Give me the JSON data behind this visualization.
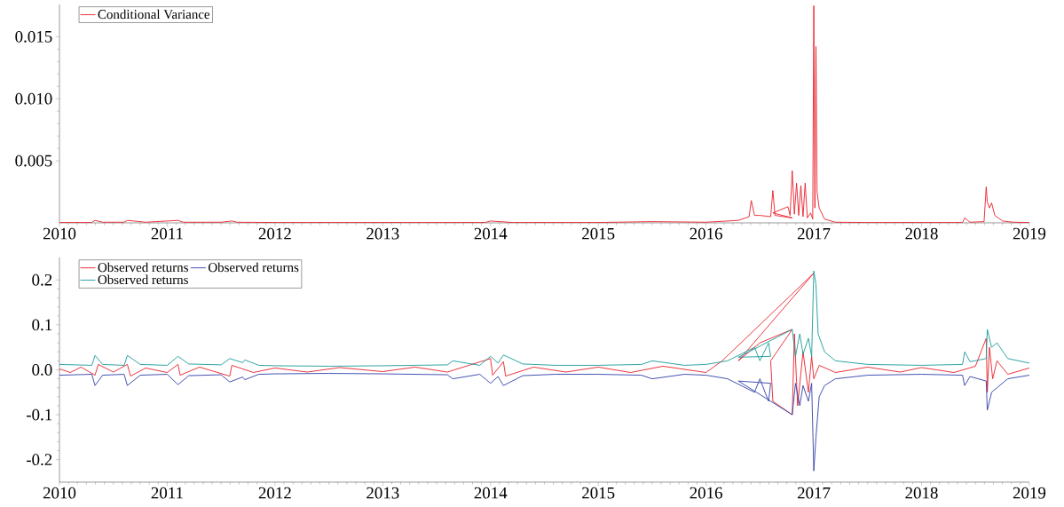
{
  "chart_data": [
    {
      "type": "line",
      "xlim": [
        2010,
        2019
      ],
      "ylim": [
        0,
        0.0176
      ],
      "xticks": [
        2010,
        2011,
        2012,
        2013,
        2014,
        2015,
        2016,
        2017,
        2018,
        2019
      ],
      "yticks": [
        {
          "value": 0.005,
          "label": "0.005"
        },
        {
          "value": 0.01,
          "label": "0.010"
        },
        {
          "value": 0.015,
          "label": "0.015"
        }
      ],
      "legend": "top left",
      "line_style": "solid",
      "marker": "none",
      "series": [
        {
          "name": "Conditional Variance",
          "color": "#e8202a",
          "x": [
            2010,
            2010.3,
            2010.33,
            2010.4,
            2010.6,
            2010.63,
            2010.8,
            2011.1,
            2011.15,
            2011.5,
            2011.6,
            2011.65,
            2012,
            2013,
            2013.95,
            2014.0,
            2014.2,
            2015,
            2015.5,
            2016,
            2016.3,
            2016.4,
            2016.42,
            2016.45,
            2016.5,
            2016.6,
            2016.62,
            2016.64,
            2016.8,
            2016.62,
            2016.76,
            2016.78,
            2016.8,
            2016.82,
            2016.84,
            2016.86,
            2016.88,
            2016.9,
            2016.92,
            2016.94,
            2016.97,
            2016.99,
            2017.0,
            2017.01,
            2017.02,
            2017.03,
            2017.05,
            2017.1,
            2017.2,
            2017.5,
            2018,
            2018.38,
            2018.4,
            2018.45,
            2018.58,
            2018.6,
            2018.61,
            2018.63,
            2018.65,
            2018.68,
            2018.75,
            2018.85,
            2019
          ],
          "values": [
            3e-05,
            3e-05,
            0.0002,
            5e-05,
            5e-05,
            0.0002,
            5e-05,
            0.0002,
            5e-05,
            5e-05,
            0.00015,
            5e-05,
            3e-05,
            3e-05,
            3e-05,
            0.00015,
            3e-05,
            3e-05,
            0.0001,
            5e-05,
            0.0002,
            0.0005,
            0.0018,
            0.0006,
            0.0006,
            0.0005,
            0.0026,
            0.0006,
            0.0004,
            0.0008,
            0.0013,
            0.0006,
            0.0042,
            0.0007,
            0.0032,
            0.0006,
            0.003,
            0.0005,
            0.0032,
            0.0004,
            0.0008,
            0.0003,
            0.0175,
            0.0012,
            0.0142,
            0.0025,
            0.0012,
            0.0003,
            5e-05,
            3e-05,
            3e-05,
            3e-05,
            0.0004,
            5e-05,
            0.0001,
            0.0029,
            0.0017,
            0.0012,
            0.0016,
            0.0006,
            0.00015,
            5e-05,
            3e-05
          ]
        }
      ]
    },
    {
      "type": "line",
      "xlim": [
        2010,
        2019
      ],
      "ylim": [
        -0.25,
        0.25
      ],
      "xticks": [
        2010,
        2011,
        2012,
        2013,
        2014,
        2015,
        2016,
        2017,
        2018,
        2019
      ],
      "yticks": [
        {
          "value": -0.2,
          "label": "-0.2"
        },
        {
          "value": -0.1,
          "label": "-0.1"
        },
        {
          "value": 0,
          "label": "0.0"
        },
        {
          "value": 0.1,
          "label": "0.1"
        },
        {
          "value": 0.2,
          "label": "0.2"
        }
      ],
      "legend": "top left",
      "line_style": "solid",
      "marker": "none",
      "series": [
        {
          "name": "Observed returns",
          "color": "#e8202a",
          "x": [
            2010,
            2010.1,
            2010.2,
            2010.33,
            2010.36,
            2010.5,
            2010.63,
            2010.66,
            2010.8,
            2011.0,
            2011.1,
            2011.12,
            2011.3,
            2011.58,
            2011.6,
            2011.8,
            2012.0,
            2012.3,
            2012.6,
            2013.0,
            2013.3,
            2013.6,
            2014.0,
            2014.02,
            2014.12,
            2014.14,
            2014.4,
            2014.7,
            2015.0,
            2015.3,
            2015.6,
            2016.0,
            2016.15,
            2017.0,
            2016.3,
            2016.5,
            2016.8,
            2016.6,
            2016.62,
            2016.8,
            2016.82,
            2016.85,
            2016.9,
            2016.95,
            2016.98,
            2017.0,
            2017.05,
            2017.2,
            2017.5,
            2017.8,
            2018.0,
            2018.3,
            2018.5,
            2018.6,
            2018.61,
            2018.63,
            2018.66,
            2018.7,
            2018.8,
            2019.0
          ],
          "values": [
            0.002,
            -0.006,
            0.006,
            -0.012,
            0.012,
            -0.005,
            0.012,
            -0.014,
            0.004,
            -0.006,
            0.012,
            -0.012,
            0.006,
            -0.014,
            0.01,
            -0.006,
            0.004,
            -0.005,
            0.005,
            -0.004,
            0.006,
            -0.005,
            0.025,
            -0.012,
            0.018,
            -0.014,
            0.006,
            -0.005,
            0.006,
            -0.006,
            0.008,
            -0.006,
            0.02,
            0.215,
            0.02,
            0.06,
            0.09,
            0.02,
            -0.07,
            -0.1,
            0.08,
            -0.08,
            0.04,
            -0.05,
            0.03,
            -0.02,
            0.01,
            -0.006,
            0.006,
            -0.005,
            0.005,
            -0.006,
            0.008,
            0.07,
            -0.05,
            0.05,
            -0.02,
            0.02,
            -0.01,
            0.004
          ]
        },
        {
          "name": "Observed returns",
          "color": "#3040a8",
          "x": [
            2010,
            2010.3,
            2010.33,
            2010.4,
            2010.6,
            2010.63,
            2010.75,
            2011.0,
            2011.1,
            2011.2,
            2011.5,
            2011.58,
            2011.7,
            2011.72,
            2011.85,
            2012.0,
            2012.5,
            2013.0,
            2013.6,
            2013.65,
            2013.9,
            2014.0,
            2014.07,
            2014.12,
            2014.3,
            2014.6,
            2015.0,
            2015.4,
            2015.5,
            2015.8,
            2016.0,
            2016.2,
            2016.45,
            2016.5,
            2016.58,
            2016.6,
            2016.3,
            2016.8,
            2016.83,
            2016.87,
            2016.9,
            2016.95,
            2016.98,
            2017.0,
            2017.02,
            2017.05,
            2017.1,
            2017.2,
            2017.5,
            2018.0,
            2018.38,
            2018.4,
            2018.45,
            2018.6,
            2018.61,
            2018.65,
            2018.7,
            2018.8,
            2019.0
          ],
          "values": [
            -0.012,
            -0.01,
            -0.035,
            -0.012,
            -0.01,
            -0.035,
            -0.012,
            -0.01,
            -0.033,
            -0.013,
            -0.011,
            -0.027,
            -0.016,
            -0.022,
            -0.01,
            -0.009,
            -0.008,
            -0.009,
            -0.011,
            -0.02,
            -0.01,
            -0.03,
            -0.015,
            -0.035,
            -0.013,
            -0.01,
            -0.01,
            -0.012,
            -0.02,
            -0.01,
            -0.012,
            -0.02,
            -0.05,
            -0.02,
            -0.07,
            -0.03,
            -0.025,
            -0.1,
            -0.03,
            -0.08,
            -0.035,
            -0.07,
            -0.03,
            -0.225,
            -0.15,
            -0.06,
            -0.035,
            -0.02,
            -0.012,
            -0.01,
            -0.012,
            -0.035,
            -0.015,
            -0.025,
            -0.09,
            -0.05,
            -0.04,
            -0.02,
            -0.012
          ]
        },
        {
          "name": "Observed returns",
          "color": "#1a9a9a",
          "x": [
            2010,
            2010.3,
            2010.33,
            2010.4,
            2010.6,
            2010.63,
            2010.75,
            2011.0,
            2011.1,
            2011.2,
            2011.5,
            2011.58,
            2011.7,
            2011.72,
            2011.85,
            2012.0,
            2012.5,
            2013.0,
            2013.6,
            2013.65,
            2013.9,
            2014.0,
            2014.07,
            2014.12,
            2014.3,
            2014.6,
            2015.0,
            2015.4,
            2015.5,
            2015.8,
            2016.0,
            2016.2,
            2016.45,
            2016.5,
            2016.58,
            2016.6,
            2016.3,
            2016.8,
            2016.83,
            2016.87,
            2016.9,
            2016.95,
            2016.98,
            2017.0,
            2017.02,
            2017.04,
            2017.1,
            2017.2,
            2017.5,
            2018.0,
            2018.38,
            2018.4,
            2018.45,
            2018.6,
            2018.61,
            2018.65,
            2018.7,
            2018.8,
            2019.0
          ],
          "values": [
            0.012,
            0.01,
            0.032,
            0.012,
            0.01,
            0.032,
            0.012,
            0.01,
            0.03,
            0.013,
            0.011,
            0.025,
            0.016,
            0.022,
            0.01,
            0.009,
            0.008,
            0.009,
            0.011,
            0.02,
            0.01,
            0.03,
            0.015,
            0.033,
            0.013,
            0.01,
            0.01,
            0.012,
            0.02,
            0.01,
            0.012,
            0.02,
            0.05,
            0.02,
            0.06,
            0.03,
            0.028,
            0.09,
            0.03,
            0.08,
            0.035,
            0.07,
            0.03,
            0.22,
            0.19,
            0.08,
            0.04,
            0.02,
            0.012,
            0.01,
            0.012,
            0.04,
            0.018,
            0.025,
            0.09,
            0.05,
            0.06,
            0.025,
            0.015
          ]
        }
      ]
    }
  ]
}
